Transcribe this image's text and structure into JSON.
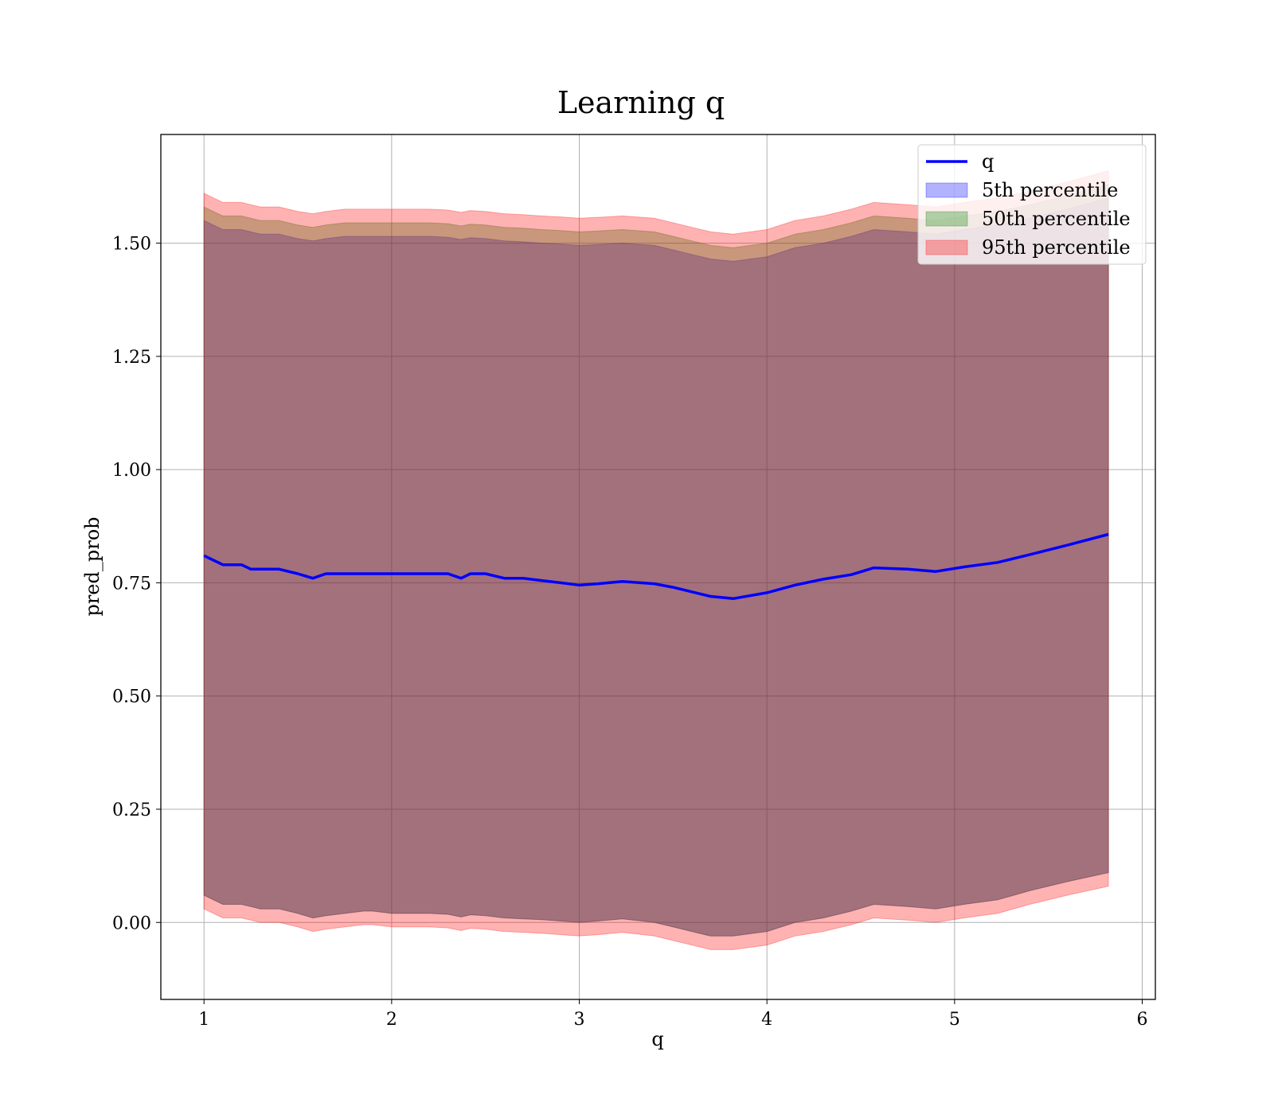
{
  "chart_data": {
    "type": "area",
    "title": "Learning q",
    "xlabel": "q",
    "ylabel": "pred_prob",
    "xlim": [
      0.77,
      6.07
    ],
    "ylim": [
      -0.17,
      1.74
    ],
    "grid": true,
    "legend_placement": "top-right",
    "x_ticks": [
      1,
      2,
      3,
      4,
      5,
      6
    ],
    "x_tick_labels": [
      "1",
      "2",
      "3",
      "4",
      "5",
      "6"
    ],
    "y_ticks": [
      0.0,
      0.25,
      0.5,
      0.75,
      1.0,
      1.25,
      1.5
    ],
    "y_tick_labels": [
      "0.00",
      "0.25",
      "0.50",
      "0.75",
      "1.00",
      "1.25",
      "1.50"
    ],
    "x": [
      1.0,
      1.05,
      1.1,
      1.15,
      1.2,
      1.25,
      1.3,
      1.4,
      1.5,
      1.58,
      1.65,
      1.75,
      1.85,
      1.9,
      2.0,
      2.1,
      2.2,
      2.3,
      2.37,
      2.42,
      2.5,
      2.6,
      2.7,
      2.8,
      2.9,
      3.0,
      3.1,
      3.23,
      3.4,
      3.5,
      3.6,
      3.7,
      3.82,
      4.0,
      4.15,
      4.3,
      4.45,
      4.57,
      4.75,
      4.9,
      5.05,
      5.23,
      5.4,
      5.6,
      5.82
    ],
    "series": [
      {
        "name": "q",
        "kind": "line",
        "color": "#0000ff",
        "values": [
          0.81,
          0.8,
          0.79,
          0.79,
          0.79,
          0.78,
          0.78,
          0.78,
          0.77,
          0.76,
          0.77,
          0.77,
          0.77,
          0.77,
          0.77,
          0.77,
          0.77,
          0.77,
          0.76,
          0.77,
          0.77,
          0.76,
          0.76,
          0.755,
          0.75,
          0.745,
          0.748,
          0.753,
          0.748,
          0.74,
          0.73,
          0.72,
          0.715,
          0.728,
          0.745,
          0.758,
          0.768,
          0.783,
          0.78,
          0.775,
          0.785,
          0.795,
          0.812,
          0.833,
          0.857
        ]
      },
      {
        "name": "5th percentile",
        "kind": "band",
        "color": "#0000ff",
        "lower": [
          0.06,
          0.05,
          0.04,
          0.04,
          0.04,
          0.035,
          0.03,
          0.03,
          0.02,
          0.01,
          0.015,
          0.02,
          0.025,
          0.025,
          0.02,
          0.02,
          0.02,
          0.018,
          0.012,
          0.017,
          0.015,
          0.01,
          0.008,
          0.006,
          0.003,
          0.0,
          0.003,
          0.008,
          0.0,
          -0.01,
          -0.02,
          -0.03,
          -0.03,
          -0.02,
          0.0,
          0.01,
          0.025,
          0.04,
          0.035,
          0.03,
          0.04,
          0.05,
          0.07,
          0.09,
          0.11
        ],
        "upper": [
          1.55,
          1.54,
          1.53,
          1.53,
          1.53,
          1.525,
          1.52,
          1.52,
          1.51,
          1.505,
          1.51,
          1.515,
          1.515,
          1.515,
          1.515,
          1.515,
          1.515,
          1.513,
          1.508,
          1.512,
          1.51,
          1.505,
          1.503,
          1.5,
          1.498,
          1.495,
          1.497,
          1.5,
          1.495,
          1.485,
          1.475,
          1.465,
          1.46,
          1.47,
          1.49,
          1.5,
          1.515,
          1.53,
          1.525,
          1.52,
          1.53,
          1.54,
          1.555,
          1.575,
          1.6
        ]
      },
      {
        "name": "50th percentile",
        "kind": "band",
        "color": "#008000",
        "lower": [
          0.06,
          0.05,
          0.04,
          0.04,
          0.04,
          0.035,
          0.03,
          0.03,
          0.02,
          0.01,
          0.015,
          0.02,
          0.025,
          0.025,
          0.02,
          0.02,
          0.02,
          0.018,
          0.012,
          0.017,
          0.015,
          0.01,
          0.008,
          0.006,
          0.003,
          0.0,
          0.003,
          0.008,
          0.0,
          -0.01,
          -0.02,
          -0.03,
          -0.03,
          -0.02,
          0.0,
          0.01,
          0.025,
          0.04,
          0.035,
          0.03,
          0.04,
          0.05,
          0.07,
          0.09,
          0.11
        ],
        "upper": [
          1.58,
          1.57,
          1.56,
          1.56,
          1.56,
          1.555,
          1.55,
          1.55,
          1.54,
          1.535,
          1.54,
          1.545,
          1.545,
          1.545,
          1.545,
          1.545,
          1.545,
          1.543,
          1.538,
          1.542,
          1.54,
          1.535,
          1.533,
          1.53,
          1.528,
          1.525,
          1.527,
          1.53,
          1.525,
          1.515,
          1.505,
          1.495,
          1.49,
          1.5,
          1.52,
          1.53,
          1.545,
          1.56,
          1.555,
          1.55,
          1.56,
          1.57,
          1.585,
          1.605,
          1.63
        ]
      },
      {
        "name": "95th percentile",
        "kind": "band",
        "color": "#ff0000",
        "lower": [
          0.03,
          0.02,
          0.01,
          0.01,
          0.01,
          0.005,
          0.0,
          0.0,
          -0.01,
          -0.02,
          -0.015,
          -0.01,
          -0.005,
          -0.005,
          -0.01,
          -0.01,
          -0.01,
          -0.012,
          -0.018,
          -0.013,
          -0.015,
          -0.02,
          -0.022,
          -0.024,
          -0.027,
          -0.03,
          -0.027,
          -0.022,
          -0.03,
          -0.04,
          -0.05,
          -0.06,
          -0.06,
          -0.05,
          -0.03,
          -0.02,
          -0.005,
          0.01,
          0.005,
          0.0,
          0.01,
          0.02,
          0.04,
          0.06,
          0.08
        ],
        "upper": [
          1.61,
          1.6,
          1.59,
          1.59,
          1.59,
          1.585,
          1.58,
          1.58,
          1.57,
          1.565,
          1.57,
          1.575,
          1.575,
          1.575,
          1.575,
          1.575,
          1.575,
          1.573,
          1.568,
          1.572,
          1.57,
          1.565,
          1.563,
          1.56,
          1.558,
          1.555,
          1.557,
          1.56,
          1.555,
          1.545,
          1.535,
          1.525,
          1.52,
          1.53,
          1.55,
          1.56,
          1.575,
          1.59,
          1.585,
          1.58,
          1.59,
          1.6,
          1.615,
          1.635,
          1.66
        ]
      }
    ]
  }
}
